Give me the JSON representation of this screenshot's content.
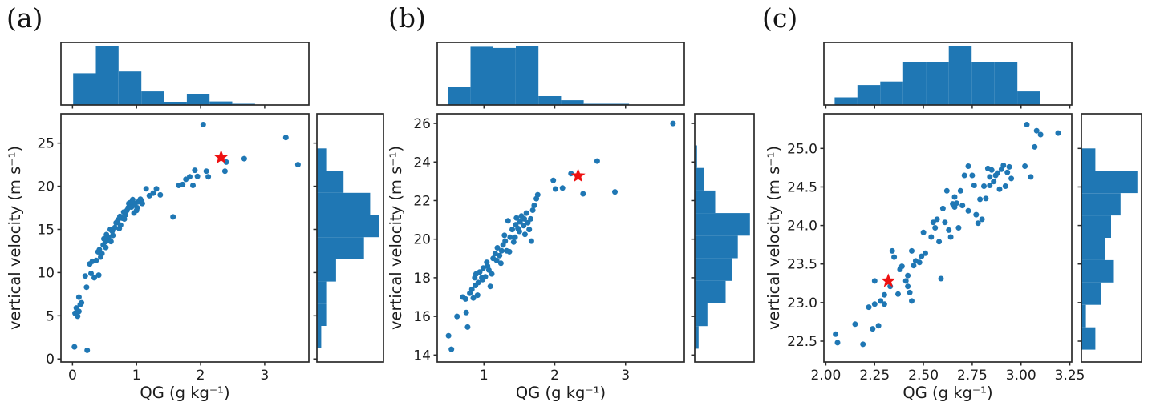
{
  "figure": {
    "colors": {
      "point": "#1f77b4",
      "hist": "#1f77b4",
      "star": "#ee1111",
      "axis": "#2a2a2a",
      "text": "#1c1c1c",
      "background": "#ffffff"
    }
  },
  "chart_data": [
    {
      "type": "scatter",
      "subtype": "scatter_with_marginal_histograms",
      "panel_label": "(a)",
      "xlabel": "QG (g kg⁻¹)",
      "ylabel": "vertical velocity (m s⁻¹)",
      "xlim": [
        -0.18,
        3.69
      ],
      "ylim": [
        -0.35,
        28.4
      ],
      "xticks": [
        0,
        1,
        2,
        3
      ],
      "xtick_labels": [
        "0",
        "1",
        "2",
        "3"
      ],
      "yticks": [
        0,
        5,
        10,
        15,
        20,
        25
      ],
      "ytick_labels": [
        "0",
        "5",
        "10",
        "15",
        "20",
        "25"
      ],
      "star": [
        2.32,
        23.35
      ],
      "points": [
        [
          0.03,
          1.4
        ],
        [
          0.23,
          1.0
        ],
        [
          0.04,
          5.3
        ],
        [
          0.06,
          5.9
        ],
        [
          0.08,
          4.95
        ],
        [
          0.1,
          5.5
        ],
        [
          0.12,
          6.3
        ],
        [
          0.1,
          7.15
        ],
        [
          0.14,
          6.5
        ],
        [
          0.22,
          8.3
        ],
        [
          0.2,
          9.6
        ],
        [
          0.29,
          9.9
        ],
        [
          0.34,
          9.4
        ],
        [
          0.41,
          9.7
        ],
        [
          0.27,
          11.0
        ],
        [
          0.31,
          11.3
        ],
        [
          0.37,
          11.4
        ],
        [
          0.4,
          12.4
        ],
        [
          0.42,
          12.65
        ],
        [
          0.46,
          12.2
        ],
        [
          0.44,
          11.8
        ],
        [
          0.48,
          13.2
        ],
        [
          0.49,
          13.9
        ],
        [
          0.52,
          13.6
        ],
        [
          0.53,
          14.4
        ],
        [
          0.56,
          14.1
        ],
        [
          0.52,
          12.9
        ],
        [
          0.57,
          13.8
        ],
        [
          0.59,
          15.0
        ],
        [
          0.6,
          13.6
        ],
        [
          0.63,
          14.3
        ],
        [
          0.62,
          14.8
        ],
        [
          0.66,
          15.2
        ],
        [
          0.68,
          15.75
        ],
        [
          0.71,
          16.1
        ],
        [
          0.7,
          15.9
        ],
        [
          0.73,
          15.1
        ],
        [
          0.75,
          15.5
        ],
        [
          0.74,
          16.5
        ],
        [
          0.78,
          16.3
        ],
        [
          0.8,
          17.0
        ],
        [
          0.81,
          16.2
        ],
        [
          0.83,
          16.7
        ],
        [
          0.85,
          17.2
        ],
        [
          0.87,
          17.5
        ],
        [
          0.88,
          18.0
        ],
        [
          0.9,
          18.1
        ],
        [
          0.92,
          17.6
        ],
        [
          0.94,
          18.45
        ],
        [
          0.95,
          17.8
        ],
        [
          0.96,
          16.9
        ],
        [
          0.98,
          18.0
        ],
        [
          1.0,
          17.2
        ],
        [
          1.01,
          17.5
        ],
        [
          1.03,
          18.2
        ],
        [
          1.06,
          18.5
        ],
        [
          1.08,
          18.3
        ],
        [
          1.09,
          18.0
        ],
        [
          1.15,
          19.7
        ],
        [
          1.2,
          18.9
        ],
        [
          1.26,
          19.2
        ],
        [
          1.31,
          19.7
        ],
        [
          1.37,
          19.0
        ],
        [
          1.57,
          16.45
        ],
        [
          1.66,
          20.1
        ],
        [
          1.72,
          20.2
        ],
        [
          1.77,
          20.8
        ],
        [
          1.83,
          21.1
        ],
        [
          1.88,
          20.1
        ],
        [
          1.91,
          21.85
        ],
        [
          1.95,
          21.15
        ],
        [
          2.04,
          27.15
        ],
        [
          2.09,
          21.75
        ],
        [
          2.12,
          21.1
        ],
        [
          2.4,
          22.8
        ],
        [
          2.38,
          21.75
        ],
        [
          2.68,
          23.2
        ],
        [
          3.33,
          25.65
        ],
        [
          3.52,
          22.5
        ]
      ],
      "hist_top": {
        "start": 0.01,
        "bin_width": 0.355,
        "heights": [
          0.54,
          1.0,
          0.57,
          0.23,
          0.05,
          0.18,
          0.06,
          0.02
        ]
      },
      "hist_right": {
        "start": 1.25,
        "bin_width": 2.57,
        "heights": [
          0.07,
          0.15,
          0.15,
          0.31,
          0.76,
          1.0,
          0.86,
          0.43,
          0.15
        ]
      }
    },
    {
      "type": "scatter",
      "subtype": "scatter_with_marginal_histograms",
      "panel_label": "(b)",
      "xlabel": "QG (g kg⁻¹)",
      "ylabel": "vertical velocity (m s⁻¹)",
      "xlim": [
        0.34,
        3.83
      ],
      "ylim": [
        13.64,
        26.5
      ],
      "xticks": [
        1,
        2,
        3
      ],
      "xtick_labels": [
        "1",
        "2",
        "3"
      ],
      "yticks": [
        14,
        16,
        18,
        20,
        22,
        24,
        26
      ],
      "ytick_labels": [
        "14",
        "16",
        "18",
        "20",
        "22",
        "24",
        "26"
      ],
      "star": [
        2.33,
        23.28
      ],
      "points": [
        [
          0.5,
          15.0
        ],
        [
          0.54,
          14.3
        ],
        [
          0.62,
          16.0
        ],
        [
          0.7,
          17.0
        ],
        [
          0.75,
          16.2
        ],
        [
          0.77,
          15.45
        ],
        [
          0.74,
          16.9
        ],
        [
          0.8,
          17.2
        ],
        [
          0.83,
          17.4
        ],
        [
          0.85,
          16.95
        ],
        [
          0.87,
          18.0
        ],
        [
          0.88,
          17.6
        ],
        [
          0.89,
          18.2
        ],
        [
          0.92,
          17.75
        ],
        [
          0.91,
          17.1
        ],
        [
          0.94,
          18.3
        ],
        [
          0.97,
          18.0
        ],
        [
          0.98,
          17.9
        ],
        [
          0.99,
          18.5
        ],
        [
          1.02,
          18.05
        ],
        [
          1.04,
          18.8
        ],
        [
          1.05,
          18.6
        ],
        [
          1.07,
          18.4
        ],
        [
          1.09,
          17.55
        ],
        [
          1.11,
          18.2
        ],
        [
          1.13,
          19.0
        ],
        [
          1.16,
          19.25
        ],
        [
          1.18,
          18.9
        ],
        [
          1.19,
          19.55
        ],
        [
          1.22,
          19.15
        ],
        [
          1.24,
          18.75
        ],
        [
          1.25,
          19.4
        ],
        [
          1.27,
          19.7
        ],
        [
          1.29,
          20.2
        ],
        [
          1.3,
          19.9
        ],
        [
          1.32,
          19.4
        ],
        [
          1.34,
          20.95
        ],
        [
          1.36,
          19.35
        ],
        [
          1.37,
          20.1
        ],
        [
          1.4,
          20.5
        ],
        [
          1.42,
          19.85
        ],
        [
          1.44,
          20.1
        ],
        [
          1.45,
          20.75
        ],
        [
          1.46,
          21.1
        ],
        [
          1.48,
          20.55
        ],
        [
          1.5,
          20.4
        ],
        [
          1.51,
          20.9
        ],
        [
          1.53,
          21.2
        ],
        [
          1.56,
          20.7
        ],
        [
          1.57,
          21.05
        ],
        [
          1.58,
          20.25
        ],
        [
          1.6,
          21.35
        ],
        [
          1.62,
          20.85
        ],
        [
          1.64,
          20.5
        ],
        [
          1.66,
          21.05
        ],
        [
          1.67,
          19.9
        ],
        [
          1.69,
          21.5
        ],
        [
          1.71,
          21.75
        ],
        [
          1.74,
          22.1
        ],
        [
          1.76,
          22.3
        ],
        [
          1.98,
          23.05
        ],
        [
          2.01,
          22.6
        ],
        [
          2.11,
          22.65
        ],
        [
          2.23,
          23.4
        ],
        [
          2.4,
          22.35
        ],
        [
          2.6,
          24.05
        ],
        [
          2.85,
          22.45
        ],
        [
          3.67,
          26.0
        ]
      ],
      "hist_top": {
        "start": 0.49,
        "bin_width": 0.32,
        "heights": [
          0.3,
          0.99,
          0.97,
          1.0,
          0.15,
          0.08,
          0.02,
          0.02
        ]
      },
      "hist_right": {
        "start": 14.33,
        "bin_width": 1.17,
        "heights": [
          0.07,
          0.23,
          0.56,
          0.67,
          0.78,
          1.0,
          0.37,
          0.16,
          0.04
        ]
      }
    },
    {
      "type": "scatter",
      "subtype": "scatter_with_marginal_histograms",
      "panel_label": "(c)",
      "xlabel": "QG (g kg⁻¹)",
      "ylabel": "vertical velocity (m s⁻¹)",
      "xlim": [
        1.99,
        3.26
      ],
      "ylim": [
        22.23,
        25.45
      ],
      "xticks": [
        2.0,
        2.25,
        2.5,
        2.75,
        3.0,
        3.25
      ],
      "xtick_labels": [
        "2.00",
        "2.25",
        "2.50",
        "2.75",
        "3.00",
        "3.25"
      ],
      "yticks": [
        22.5,
        23.0,
        23.5,
        24.0,
        24.5,
        25.0
      ],
      "ytick_labels": [
        "22.5",
        "23.0",
        "23.5",
        "24.0",
        "24.5",
        "25.0"
      ],
      "star": [
        2.32,
        23.28
      ],
      "points": [
        [
          2.05,
          22.59
        ],
        [
          2.06,
          22.48
        ],
        [
          2.15,
          22.72
        ],
        [
          2.19,
          22.46
        ],
        [
          2.24,
          22.66
        ],
        [
          2.27,
          22.7
        ],
        [
          2.22,
          22.94
        ],
        [
          2.25,
          22.98
        ],
        [
          2.28,
          23.02
        ],
        [
          2.3,
          23.1
        ],
        [
          2.25,
          23.28
        ],
        [
          2.3,
          22.98
        ],
        [
          2.33,
          23.21
        ],
        [
          2.34,
          23.67
        ],
        [
          2.35,
          23.59
        ],
        [
          2.37,
          23.11
        ],
        [
          2.38,
          23.43
        ],
        [
          2.39,
          23.47
        ],
        [
          2.41,
          23.28
        ],
        [
          2.42,
          23.35
        ],
        [
          2.42,
          23.21
        ],
        [
          2.43,
          23.13
        ],
        [
          2.44,
          23.67
        ],
        [
          2.44,
          23.02
        ],
        [
          2.45,
          23.48
        ],
        [
          2.46,
          23.54
        ],
        [
          2.48,
          23.52
        ],
        [
          2.49,
          23.6
        ],
        [
          2.5,
          23.91
        ],
        [
          2.51,
          23.64
        ],
        [
          2.54,
          23.85
        ],
        [
          2.55,
          24.04
        ],
        [
          2.56,
          23.97
        ],
        [
          2.57,
          24.08
        ],
        [
          2.58,
          23.79
        ],
        [
          2.59,
          23.31
        ],
        [
          2.6,
          24.22
        ],
        [
          2.61,
          24.04
        ],
        [
          2.62,
          24.45
        ],
        [
          2.63,
          23.94
        ],
        [
          2.64,
          23.85
        ],
        [
          2.65,
          24.28
        ],
        [
          2.66,
          24.37
        ],
        [
          2.66,
          24.24
        ],
        [
          2.67,
          24.29
        ],
        [
          2.68,
          23.97
        ],
        [
          2.69,
          24.45
        ],
        [
          2.7,
          24.26
        ],
        [
          2.71,
          24.65
        ],
        [
          2.73,
          24.19
        ],
        [
          2.73,
          24.77
        ],
        [
          2.75,
          24.65
        ],
        [
          2.76,
          24.52
        ],
        [
          2.77,
          24.14
        ],
        [
          2.78,
          24.03
        ],
        [
          2.79,
          24.34
        ],
        [
          2.8,
          24.08
        ],
        [
          2.81,
          24.51
        ],
        [
          2.82,
          24.35
        ],
        [
          2.83,
          24.74
        ],
        [
          2.84,
          24.52
        ],
        [
          2.84,
          24.63
        ],
        [
          2.85,
          24.72
        ],
        [
          2.86,
          24.57
        ],
        [
          2.87,
          24.65
        ],
        [
          2.88,
          24.68
        ],
        [
          2.89,
          24.47
        ],
        [
          2.9,
          24.73
        ],
        [
          2.91,
          24.78
        ],
        [
          2.92,
          24.51
        ],
        [
          2.93,
          24.69
        ],
        [
          2.94,
          24.76
        ],
        [
          2.95,
          24.61
        ],
        [
          3.02,
          24.77
        ],
        [
          3.03,
          25.31
        ],
        [
          3.05,
          24.63
        ],
        [
          3.07,
          25.02
        ],
        [
          3.08,
          25.23
        ],
        [
          3.1,
          25.18
        ],
        [
          3.19,
          25.2
        ]
      ],
      "hist_top": {
        "start": 2.045,
        "bin_width": 0.117,
        "heights": [
          0.13,
          0.34,
          0.4,
          0.73,
          0.73,
          1.0,
          0.73,
          0.73,
          0.23
        ]
      },
      "hist_right": {
        "start": 22.39,
        "bin_width": 0.29,
        "heights": [
          0.25,
          0.08,
          0.35,
          0.58,
          0.42,
          0.53,
          0.7,
          1.0,
          0.25
        ]
      }
    }
  ]
}
